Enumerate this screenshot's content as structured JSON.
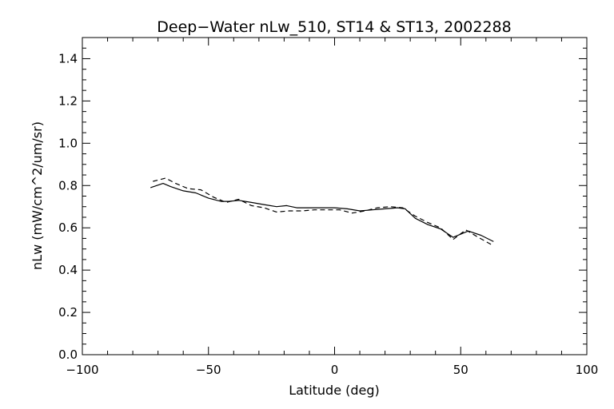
{
  "chart_data": {
    "type": "line",
    "title": "Deep−Water nLw_510, ST14 & ST13, 2002288",
    "xlabel": "Latitude (deg)",
    "ylabel": "nLw (mW/cm^2/um/sr)",
    "xlim": [
      -100,
      100
    ],
    "ylim": [
      0.0,
      1.5
    ],
    "x_ticks": [
      -100,
      -50,
      0,
      50,
      100
    ],
    "x_tick_labels": [
      "−100",
      "−50",
      "0",
      "50",
      "100"
    ],
    "y_ticks": [
      0.0,
      0.2,
      0.4,
      0.6,
      0.8,
      1.0,
      1.2,
      1.4
    ],
    "y_tick_labels": [
      "0.0",
      "0.2",
      "0.4",
      "0.6",
      "0.8",
      "1.0",
      "1.2",
      "1.4"
    ],
    "grid": false,
    "legend": "none",
    "series": [
      {
        "style": "solid",
        "color": "#000000",
        "x": [
          -73,
          -68,
          -65,
          -60,
          -55,
          -50,
          -45,
          -42,
          -38,
          -33,
          -28,
          -23,
          -19,
          -15,
          -10,
          -5,
          0,
          5,
          10,
          15,
          20,
          25,
          28,
          32,
          37,
          42,
          47,
          53,
          58,
          63
        ],
        "y": [
          0.79,
          0.81,
          0.795,
          0.775,
          0.765,
          0.74,
          0.725,
          0.725,
          0.73,
          0.72,
          0.71,
          0.7,
          0.705,
          0.695,
          0.695,
          0.695,
          0.695,
          0.69,
          0.68,
          0.685,
          0.69,
          0.695,
          0.69,
          0.645,
          0.615,
          0.595,
          0.555,
          0.585,
          0.565,
          0.535
        ]
      },
      {
        "style": "dashed",
        "color": "#000000",
        "x": [
          -72,
          -67,
          -63,
          -58,
          -53,
          -48,
          -43,
          -38,
          -33,
          -28,
          -23,
          -18,
          -13,
          -8,
          -3,
          2,
          7,
          12,
          17,
          22,
          27,
          32,
          37,
          42,
          47,
          52,
          57,
          63
        ],
        "y": [
          0.82,
          0.835,
          0.81,
          0.785,
          0.78,
          0.745,
          0.72,
          0.735,
          0.705,
          0.695,
          0.675,
          0.68,
          0.68,
          0.685,
          0.685,
          0.685,
          0.67,
          0.68,
          0.695,
          0.7,
          0.695,
          0.655,
          0.625,
          0.6,
          0.545,
          0.59,
          0.555,
          0.515
        ]
      }
    ]
  }
}
